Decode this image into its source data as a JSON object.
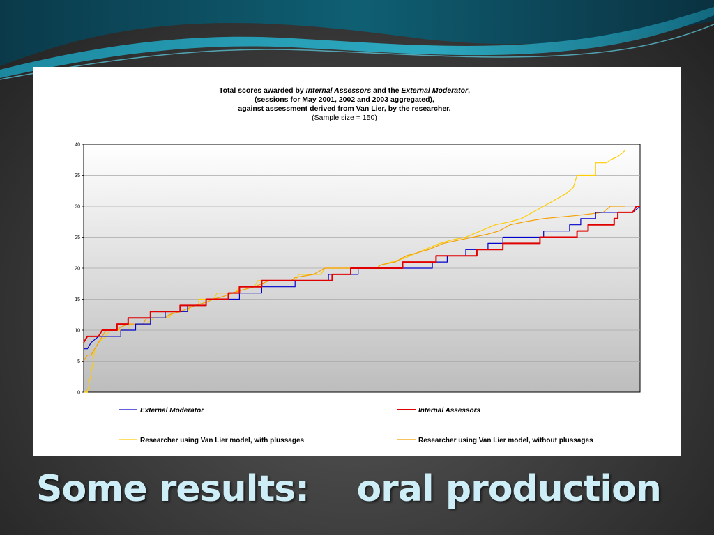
{
  "slide": {
    "title": "Some results:    oral production"
  },
  "chart_data": {
    "type": "line",
    "title_line1_a": "Total scores awarded by ",
    "title_line1_b": "Internal Assessors",
    "title_line1_c": " and the ",
    "title_line1_d": "External Moderator",
    "title_line1_e": ",",
    "title_line2": "(sessions for May 2001, 2002 and 2003 aggregated),",
    "title_line3": "against assessment derived from Van Lier, by the researcher.",
    "title_line4": "(Sample size = 150)",
    "xlabel": "",
    "ylabel": "",
    "ylim": [
      0,
      40
    ],
    "yticks": [
      0,
      5,
      10,
      15,
      20,
      25,
      30,
      35,
      40
    ],
    "x_range": [
      0,
      150
    ],
    "grid": true,
    "legend_position": "bottom",
    "series": [
      {
        "name": "External Moderator",
        "color": "#0000cc",
        "style": "italic",
        "points": [
          [
            0,
            7
          ],
          [
            1,
            7
          ],
          [
            2,
            8
          ],
          [
            4,
            9
          ],
          [
            10,
            9
          ],
          [
            10,
            10
          ],
          [
            14,
            10
          ],
          [
            14,
            11
          ],
          [
            18,
            11
          ],
          [
            18,
            12
          ],
          [
            22,
            12
          ],
          [
            22,
            13
          ],
          [
            28,
            13
          ],
          [
            28,
            14
          ],
          [
            33,
            14
          ],
          [
            33,
            15
          ],
          [
            42,
            15
          ],
          [
            42,
            16
          ],
          [
            48,
            16
          ],
          [
            48,
            17
          ],
          [
            57,
            17
          ],
          [
            57,
            18
          ],
          [
            66,
            18
          ],
          [
            66,
            19
          ],
          [
            74,
            19
          ],
          [
            74,
            20
          ],
          [
            94,
            20
          ],
          [
            94,
            21
          ],
          [
            98,
            21
          ],
          [
            98,
            22
          ],
          [
            103,
            22
          ],
          [
            103,
            23
          ],
          [
            109,
            23
          ],
          [
            109,
            24
          ],
          [
            113,
            24
          ],
          [
            113,
            25
          ],
          [
            124,
            25
          ],
          [
            124,
            26
          ],
          [
            131,
            26
          ],
          [
            131,
            27
          ],
          [
            134,
            27
          ],
          [
            134,
            28
          ],
          [
            138,
            28
          ],
          [
            138,
            29
          ],
          [
            148,
            29
          ],
          [
            150,
            30
          ]
        ]
      },
      {
        "name": "Internal Assessors",
        "color": "#e00000",
        "style": "italic",
        "points": [
          [
            0,
            8
          ],
          [
            1,
            9
          ],
          [
            4,
            9
          ],
          [
            5,
            10
          ],
          [
            9,
            10
          ],
          [
            9,
            11
          ],
          [
            12,
            11
          ],
          [
            12,
            12
          ],
          [
            18,
            12
          ],
          [
            18,
            13
          ],
          [
            26,
            13
          ],
          [
            26,
            14
          ],
          [
            33,
            14
          ],
          [
            33,
            15
          ],
          [
            39,
            15
          ],
          [
            39,
            16
          ],
          [
            42,
            16
          ],
          [
            42,
            17
          ],
          [
            48,
            17
          ],
          [
            48,
            18
          ],
          [
            67,
            18
          ],
          [
            67,
            19
          ],
          [
            72,
            19
          ],
          [
            72,
            20
          ],
          [
            86,
            20
          ],
          [
            86,
            21
          ],
          [
            95,
            21
          ],
          [
            95,
            22
          ],
          [
            106,
            22
          ],
          [
            106,
            23
          ],
          [
            113,
            23
          ],
          [
            113,
            24
          ],
          [
            123,
            24
          ],
          [
            123,
            25
          ],
          [
            133,
            25
          ],
          [
            133,
            26
          ],
          [
            136,
            26
          ],
          [
            136,
            27
          ],
          [
            143,
            27
          ],
          [
            143,
            28
          ],
          [
            144,
            28
          ],
          [
            144,
            29
          ],
          [
            148,
            29
          ],
          [
            149,
            30
          ],
          [
            150,
            30
          ]
        ]
      },
      {
        "name": "Researcher using Van Lier model, with plussages",
        "color": "#ffcc00",
        "style": "normal",
        "points": [
          [
            0,
            0
          ],
          [
            1,
            0
          ],
          [
            2,
            3
          ],
          [
            3,
            7
          ],
          [
            4,
            8
          ],
          [
            6,
            9
          ],
          [
            7,
            10
          ],
          [
            12,
            10
          ],
          [
            12,
            11
          ],
          [
            17,
            11
          ],
          [
            19,
            12
          ],
          [
            23,
            12
          ],
          [
            24,
            13
          ],
          [
            28,
            13
          ],
          [
            29,
            14
          ],
          [
            31,
            14
          ],
          [
            31,
            15
          ],
          [
            35,
            15
          ],
          [
            36,
            16
          ],
          [
            41,
            16
          ],
          [
            42,
            17
          ],
          [
            46,
            17
          ],
          [
            47,
            18
          ],
          [
            57,
            18
          ],
          [
            58,
            19
          ],
          [
            64,
            19
          ],
          [
            65,
            20
          ],
          [
            79,
            20
          ],
          [
            80,
            20.5
          ],
          [
            83,
            21
          ],
          [
            86,
            21.5
          ],
          [
            88,
            22
          ],
          [
            92,
            23
          ],
          [
            96,
            24
          ],
          [
            99,
            24.5
          ],
          [
            103,
            25
          ],
          [
            107,
            26
          ],
          [
            111,
            27
          ],
          [
            115,
            27.5
          ],
          [
            118,
            28
          ],
          [
            121,
            29
          ],
          [
            124,
            30
          ],
          [
            127,
            31
          ],
          [
            130,
            32
          ],
          [
            132,
            33
          ],
          [
            133,
            35
          ],
          [
            138,
            35
          ],
          [
            138,
            37
          ],
          [
            141,
            37
          ],
          [
            142,
            37.5
          ],
          [
            144,
            38
          ],
          [
            145,
            38.5
          ],
          [
            146,
            39
          ]
        ]
      },
      {
        "name": "Researcher using Van Lier model, without plussages",
        "color": "#f5a000",
        "style": "normal",
        "points": [
          [
            0,
            5
          ],
          [
            1,
            6
          ],
          [
            2,
            6
          ],
          [
            4,
            8
          ],
          [
            6,
            10
          ],
          [
            9,
            10
          ],
          [
            10,
            10.5
          ],
          [
            12,
            11
          ],
          [
            16,
            11
          ],
          [
            17,
            12
          ],
          [
            22,
            12
          ],
          [
            23,
            12.5
          ],
          [
            26,
            13
          ],
          [
            28,
            13.5
          ],
          [
            30,
            14
          ],
          [
            33,
            14.5
          ],
          [
            35,
            15
          ],
          [
            38,
            15.5
          ],
          [
            40,
            16
          ],
          [
            43,
            16.5
          ],
          [
            46,
            17
          ],
          [
            48,
            17.5
          ],
          [
            50,
            18
          ],
          [
            56,
            18
          ],
          [
            57,
            18.5
          ],
          [
            62,
            19
          ],
          [
            65,
            20
          ],
          [
            79,
            20
          ],
          [
            80,
            20.5
          ],
          [
            84,
            21
          ],
          [
            87,
            22
          ],
          [
            90,
            22.5
          ],
          [
            93,
            23
          ],
          [
            97,
            24
          ],
          [
            101,
            24.5
          ],
          [
            105,
            25
          ],
          [
            109,
            25.5
          ],
          [
            112,
            26
          ],
          [
            115,
            27
          ],
          [
            119,
            27.5
          ],
          [
            124,
            28
          ],
          [
            133,
            28.5
          ],
          [
            140,
            29
          ],
          [
            142,
            30
          ],
          [
            146,
            30
          ]
        ]
      }
    ]
  }
}
